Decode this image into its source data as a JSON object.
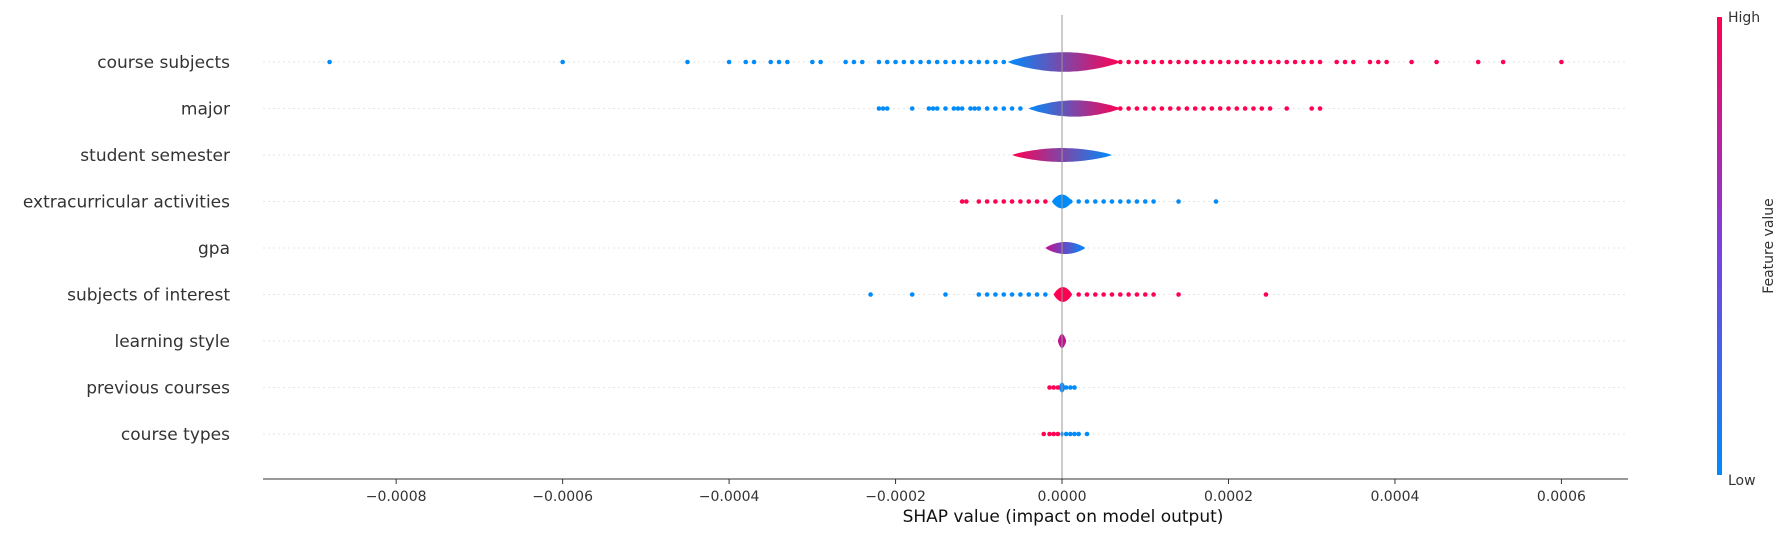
{
  "chart_data": {
    "type": "violin",
    "xlabel": "SHAP value (impact on model output)",
    "xlim": [
      -0.00096,
      0.00068
    ],
    "x_ticks": [
      -0.0008,
      -0.0006,
      -0.0004,
      -0.0002,
      0.0,
      0.0002,
      0.0004,
      0.0006
    ],
    "x_tick_labels": [
      "−0.0008",
      "−0.0006",
      "−0.0004",
      "−0.0002",
      "0.0000",
      "0.0002",
      "0.0004",
      "0.0006"
    ],
    "colorbar": {
      "label": "Feature value",
      "high": "High",
      "low": "Low",
      "high_color": "#ff0052",
      "low_color": "#008bfb"
    },
    "features": [
      {
        "name": "course subjects",
        "violin_extent": [
          -6.5e-05,
          7e-05
        ],
        "violin_halfwidth": 0.42,
        "violin_color_left": "#008bfb",
        "violin_color_right": "#ff0052",
        "low_points": [
          -0.00088,
          -0.0006,
          -0.00045,
          -0.0004,
          -0.00038,
          -0.00037,
          -0.00035,
          -0.00034,
          -0.00033,
          -0.0003,
          -0.00029,
          -0.00026,
          -0.00025,
          -0.00024,
          -0.00022,
          -0.00021,
          -0.0002,
          -0.00019,
          -0.00018,
          -0.00017,
          -0.00016,
          -0.00015,
          -0.00014,
          -0.00013,
          -0.00012,
          -0.00011,
          -0.0001,
          -9e-05,
          -8e-05,
          -7e-05
        ],
        "high_points": [
          7e-05,
          8e-05,
          9e-05,
          0.0001,
          0.00011,
          0.00012,
          0.00013,
          0.00014,
          0.00015,
          0.00016,
          0.00017,
          0.00018,
          0.00019,
          0.0002,
          0.00021,
          0.00022,
          0.00023,
          0.00024,
          0.00025,
          0.00026,
          0.00027,
          0.00028,
          0.00029,
          0.0003,
          0.00031,
          0.00033,
          0.00034,
          0.00035,
          0.00037,
          0.00038,
          0.00039,
          0.00042,
          0.00045,
          0.0005,
          0.00053,
          0.0006
        ]
      },
      {
        "name": "major",
        "violin_extent": [
          -4e-05,
          7e-05
        ],
        "violin_halfwidth": 0.35,
        "violin_color_left": "#008bfb",
        "violin_color_right": "#ff0052",
        "low_points": [
          -0.00022,
          -0.000215,
          -0.00021,
          -0.00018,
          -0.00016,
          -0.000155,
          -0.00015,
          -0.00014,
          -0.00013,
          -0.000125,
          -0.00012,
          -0.00011,
          -0.000105,
          -0.0001,
          -9e-05,
          -8e-05,
          -7e-05,
          -6e-05,
          -5e-05
        ],
        "high_points": [
          7e-05,
          8e-05,
          9e-05,
          0.0001,
          0.00011,
          0.00012,
          0.00013,
          0.00014,
          0.00015,
          0.00016,
          0.00017,
          0.00018,
          0.00019,
          0.0002,
          0.00021,
          0.00022,
          0.00023,
          0.00024,
          0.00025,
          0.00027,
          0.0003,
          0.00031
        ]
      },
      {
        "name": "student semester",
        "violin_extent": [
          -6e-05,
          6e-05
        ],
        "violin_halfwidth": 0.3,
        "violin_color_left": "#ff0052",
        "violin_color_right": "#008bfb",
        "low_points": [],
        "high_points": []
      },
      {
        "name": "extracurricular activities",
        "violin_extent": [
          -1.2e-05,
          1.2e-05
        ],
        "violin_halfwidth": 0.3,
        "violin_color_left": "#008bfb",
        "violin_color_right": "#008bfb",
        "low_points": [
          1e-05,
          2e-05,
          3e-05,
          4e-05,
          5e-05,
          6e-05,
          7e-05,
          8e-05,
          9e-05,
          0.0001,
          0.00011,
          0.00014,
          0.000185
        ],
        "high_points": [
          -0.00012,
          -0.000115,
          -0.0001,
          -9e-05,
          -8e-05,
          -7e-05,
          -6e-05,
          -5e-05,
          -4e-05,
          -3e-05,
          -2e-05
        ]
      },
      {
        "name": "gpa",
        "violin_extent": [
          -2e-05,
          2.8e-05
        ],
        "violin_halfwidth": 0.26,
        "violin_color_left": "#c2108f",
        "violin_color_right": "#008bfb",
        "low_points": [],
        "high_points": []
      },
      {
        "name": "subjects of interest",
        "violin_extent": [
          -1e-05,
          1.2e-05
        ],
        "violin_halfwidth": 0.32,
        "violin_color_left": "#ff0052",
        "violin_color_right": "#ff0052",
        "low_points": [
          -0.00023,
          -0.00018,
          -0.00014,
          -0.0001,
          -9e-05,
          -8e-05,
          -7e-05,
          -6e-05,
          -5e-05,
          -4e-05,
          -3e-05,
          -2e-05
        ],
        "high_points": [
          2e-05,
          3e-05,
          4e-05,
          5e-05,
          6e-05,
          7e-05,
          8e-05,
          9e-05,
          0.0001,
          0.00011,
          0.00014,
          0.000245
        ]
      },
      {
        "name": "learning style",
        "violin_extent": [
          -5e-06,
          5e-06
        ],
        "violin_halfwidth": 0.3,
        "violin_color_left": "#c2108f",
        "violin_color_right": "#c2108f",
        "low_points": [],
        "high_points": []
      },
      {
        "name": "previous courses",
        "violin_extent": [
          -4e-06,
          4e-06
        ],
        "violin_halfwidth": 0.22,
        "violin_color_left": "#008bfb",
        "violin_color_right": "#008bfb",
        "low_points": [
          5e-06,
          1e-05,
          1.5e-05
        ],
        "high_points": [
          -1.5e-05,
          -1e-05,
          -5e-06
        ]
      },
      {
        "name": "course types",
        "violin_extent": [
          -2e-06,
          2e-06
        ],
        "violin_halfwidth": 0.12,
        "violin_color_left": "#008bfb",
        "violin_color_right": "#008bfb",
        "low_points": [
          5e-06,
          1e-05,
          1.5e-05,
          2e-05,
          3e-05
        ],
        "high_points": [
          -2.2e-05,
          -1.5e-05,
          -1e-05,
          -5e-06
        ]
      }
    ]
  }
}
